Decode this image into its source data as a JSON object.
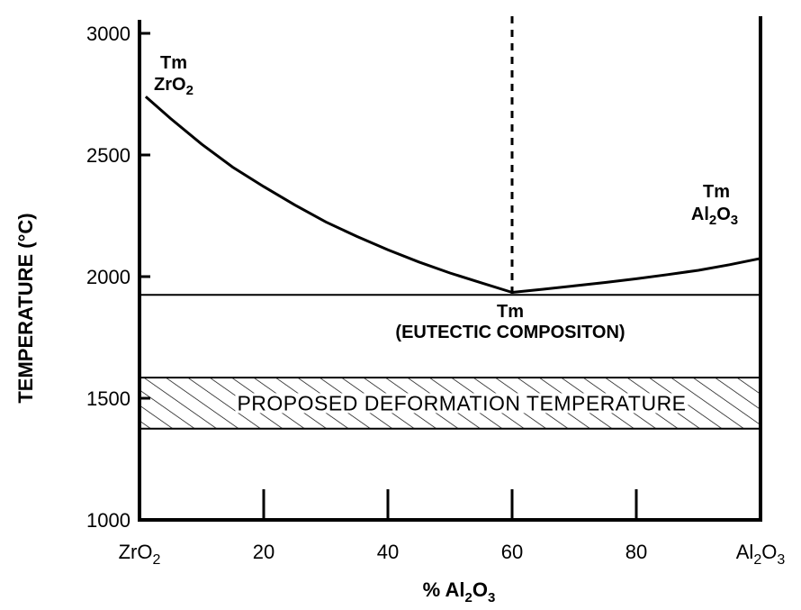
{
  "chart_data": {
    "type": "line",
    "title": "",
    "xlabel": {
      "prefix": "% ",
      "base": "Al",
      "sub1": "2",
      "mid": "O",
      "sub2": "3"
    },
    "ylabel": "TEMPERATURE (°C)",
    "xlim": [
      0,
      100
    ],
    "ylim": [
      1000,
      3000
    ],
    "x_ticks": [
      {
        "value": 0,
        "label": {
          "base": "ZrO",
          "sub": "2"
        }
      },
      {
        "value": 20,
        "label": "20"
      },
      {
        "value": 40,
        "label": "40"
      },
      {
        "value": 60,
        "label": "60"
      },
      {
        "value": 80,
        "label": "80"
      },
      {
        "value": 100,
        "label": {
          "base": "Al",
          "sub1": "2",
          "mid": "O",
          "sub2": "3"
        }
      }
    ],
    "y_ticks": [
      1000,
      1500,
      2000,
      2500,
      3000
    ],
    "series": [
      {
        "x": [
          1,
          5,
          10,
          15,
          20,
          25,
          30,
          35,
          40,
          45,
          50,
          55,
          60
        ],
        "y": [
          2740,
          2650,
          2545,
          2450,
          2370,
          2295,
          2225,
          2165,
          2110,
          2060,
          2015,
          1975,
          1935
        ]
      },
      {
        "x": [
          60,
          65,
          70,
          75,
          80,
          85,
          90,
          95,
          100
        ],
        "y": [
          1935,
          1948,
          1962,
          1976,
          1991,
          2008,
          2026,
          2049,
          2075
        ]
      }
    ],
    "eutectic_line": {
      "y": 1925,
      "x_from": 0,
      "x_to": 100
    },
    "eutectic_marker": {
      "x": 60
    },
    "band": {
      "y_from": 1375,
      "y_to": 1585,
      "label": "PROPOSED DEFORMATION TEMPERATURE"
    },
    "annotations": {
      "zro2_melt": {
        "line1": "Tm",
        "base": "ZrO",
        "sub": "2"
      },
      "al2o3_melt": {
        "line1": "Tm",
        "base": "Al",
        "sub1": "2",
        "mid": "O",
        "sub2": "3"
      },
      "eutectic": {
        "line1": "Tm",
        "line2": "(EUTECTIC COMPOSITON)"
      }
    },
    "grid": false,
    "legend": "none"
  }
}
